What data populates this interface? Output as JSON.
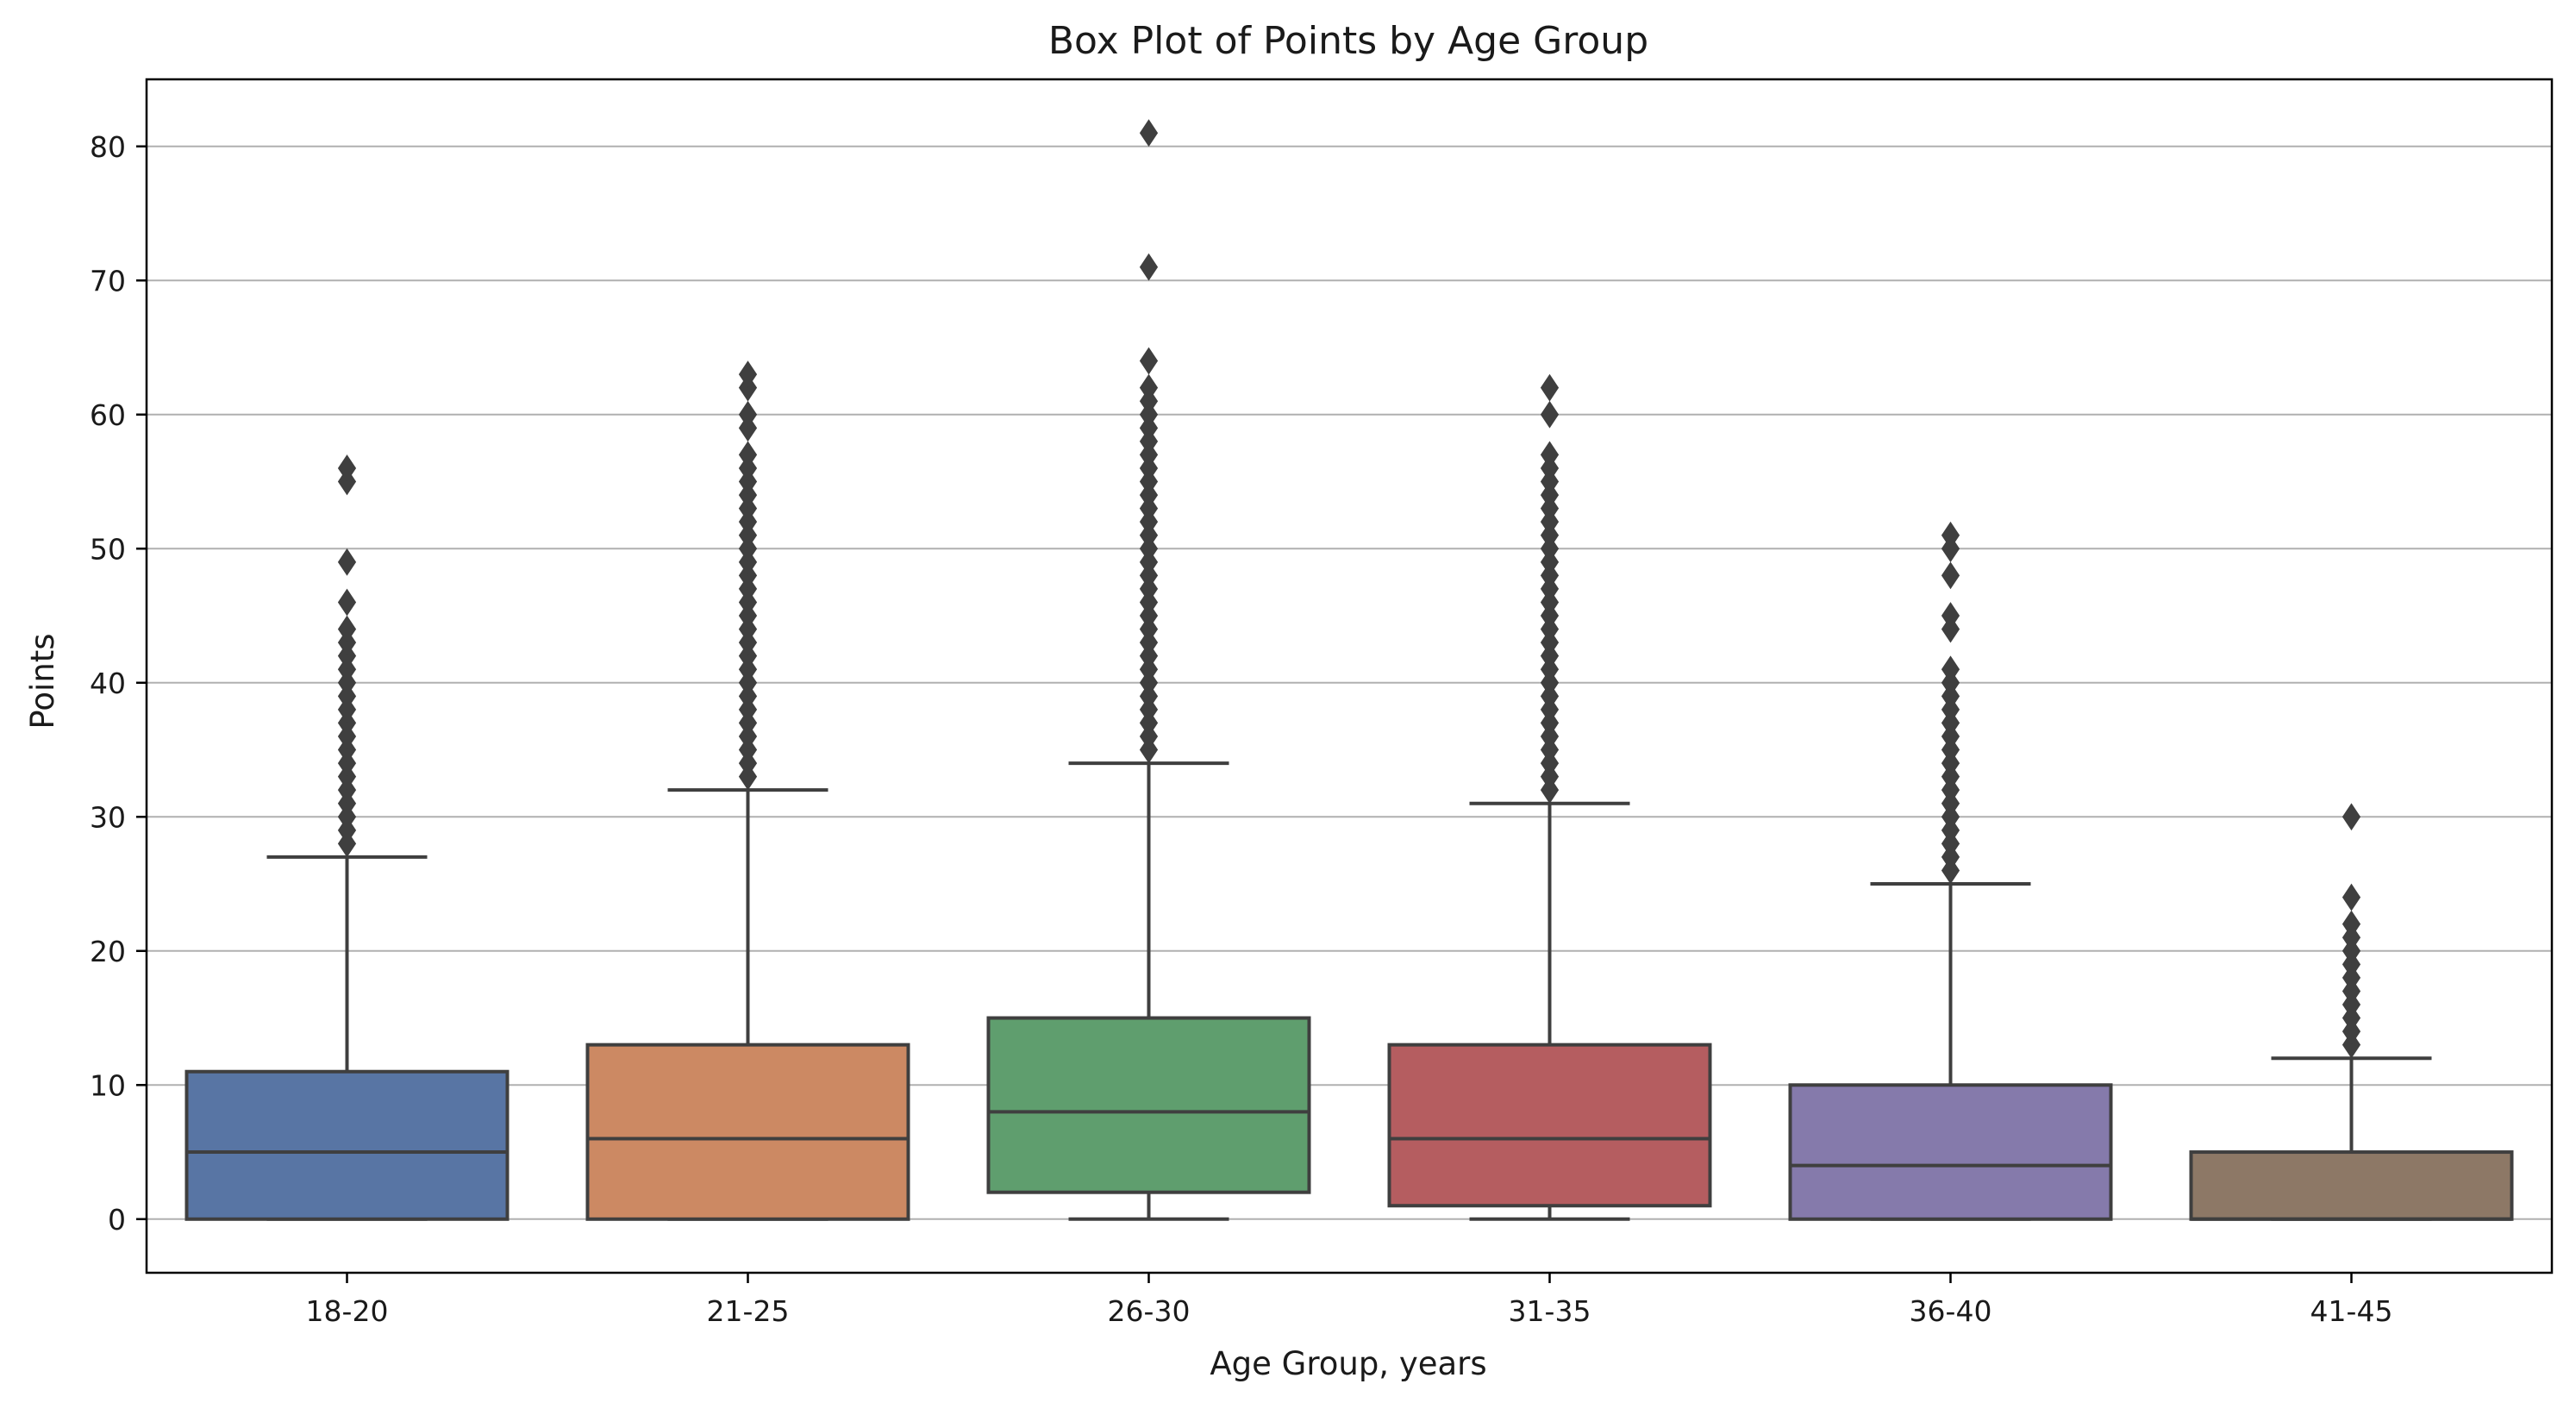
{
  "chart_data": {
    "type": "box",
    "title": "Box Plot of Points by Age Group",
    "xlabel": "Age Group, years",
    "ylabel": "Points",
    "ylim": [
      -4,
      85
    ],
    "yticks": [
      0,
      10,
      20,
      30,
      40,
      50,
      60,
      70,
      80
    ],
    "grid": "horizontal",
    "categories": [
      "18-20",
      "21-25",
      "26-30",
      "31-35",
      "36-40",
      "41-45"
    ],
    "colors": [
      "#5875a4",
      "#cc8963",
      "#5f9e6e",
      "#b55d60",
      "#857aab",
      "#8d7866"
    ],
    "edge_color": "#3f3f3f",
    "grid_color": "#b0b0b0",
    "boxes": [
      {
        "category": "18-20",
        "whisker_low": 0,
        "q1": 0,
        "median": 5,
        "q3": 11,
        "whisker_high": 27,
        "outliers": [
          28,
          29,
          30,
          31,
          32,
          33,
          34,
          35,
          36,
          37,
          38,
          39,
          40,
          41,
          42,
          43,
          44,
          46,
          49,
          55,
          56
        ]
      },
      {
        "category": "21-25",
        "whisker_low": 0,
        "q1": 0,
        "median": 6,
        "q3": 13,
        "whisker_high": 32,
        "outliers": [
          33,
          34,
          35,
          36,
          37,
          38,
          39,
          40,
          41,
          42,
          43,
          44,
          45,
          46,
          47,
          48,
          49,
          50,
          51,
          52,
          53,
          54,
          55,
          56,
          57,
          59,
          60,
          62,
          63
        ]
      },
      {
        "category": "26-30",
        "whisker_low": 0,
        "q1": 2,
        "median": 8,
        "q3": 15,
        "whisker_high": 34,
        "outliers": [
          35,
          36,
          37,
          38,
          39,
          40,
          41,
          42,
          43,
          44,
          45,
          46,
          47,
          48,
          49,
          50,
          51,
          52,
          53,
          54,
          55,
          56,
          57,
          58,
          59,
          60,
          61,
          62,
          64,
          71,
          81
        ]
      },
      {
        "category": "31-35",
        "whisker_low": 0,
        "q1": 1,
        "median": 6,
        "q3": 13,
        "whisker_high": 31,
        "outliers": [
          32,
          33,
          34,
          35,
          36,
          37,
          38,
          39,
          40,
          41,
          42,
          43,
          44,
          45,
          46,
          47,
          48,
          49,
          50,
          51,
          52,
          53,
          54,
          55,
          56,
          57,
          60,
          62
        ]
      },
      {
        "category": "36-40",
        "whisker_low": 0,
        "q1": 0,
        "median": 4,
        "q3": 10,
        "whisker_high": 25,
        "outliers": [
          26,
          27,
          28,
          29,
          30,
          31,
          32,
          33,
          34,
          35,
          36,
          37,
          38,
          39,
          40,
          41,
          44,
          45,
          48,
          50,
          51
        ]
      },
      {
        "category": "41-45",
        "whisker_low": 0,
        "q1": 0,
        "median": 0,
        "q3": 5,
        "whisker_high": 12,
        "outliers": [
          13,
          14,
          15,
          16,
          17,
          18,
          19,
          20,
          21,
          22,
          24,
          30
        ]
      }
    ]
  }
}
